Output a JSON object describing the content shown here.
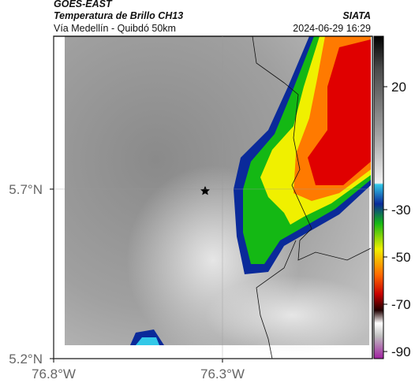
{
  "header": {
    "source": "GOES-EAST",
    "title": "Temperatura de Brillo CH13",
    "subtitle": "Vía Medellín - Quibdó 50km",
    "agency": "SIATA",
    "datetime": "2024-06-29 16:29"
  },
  "map": {
    "xlim": [
      -76.8,
      -75.856
    ],
    "ylim": [
      5.2,
      6.151
    ],
    "xticks": [
      {
        "value": -76.8,
        "label": "76.8°W"
      },
      {
        "value": -76.3,
        "label": "76.3°W"
      }
    ],
    "yticks": [
      {
        "value": 5.7,
        "label": "5.7°N"
      },
      {
        "value": 5.2,
        "label": "5.2°N"
      }
    ]
  },
  "colorbar": {
    "ticks": [
      20,
      -30,
      -50,
      -70,
      -90
    ]
  }
}
